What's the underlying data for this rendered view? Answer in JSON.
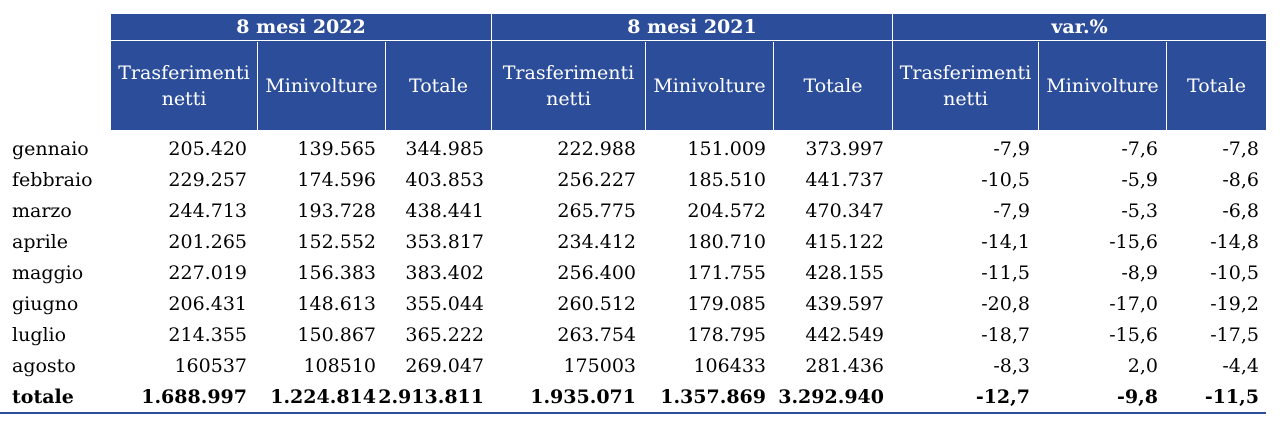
{
  "header": {
    "groups": [
      "8 mesi 2022",
      "8 mesi 2021",
      "var.%"
    ],
    "columns": [
      "Trasferimenti netti",
      "Minivolture",
      "Totale",
      "Trasferimenti netti",
      "Minivolture",
      "Totale",
      "Trasferimenti netti",
      "Minivolture",
      "Totale"
    ]
  },
  "rows": [
    {
      "month": "gennaio",
      "v": [
        "205.420",
        "139.565",
        "344.985",
        "222.988",
        "151.009",
        "373.997",
        "-7,9",
        "-7,6",
        "-7,8"
      ]
    },
    {
      "month": "febbraio",
      "v": [
        "229.257",
        "174.596",
        "403.853",
        "256.227",
        "185.510",
        "441.737",
        "-10,5",
        "-5,9",
        "-8,6"
      ]
    },
    {
      "month": "marzo",
      "v": [
        "244.713",
        "193.728",
        "438.441",
        "265.775",
        "204.572",
        "470.347",
        "-7,9",
        "-5,3",
        "-6,8"
      ]
    },
    {
      "month": "aprile",
      "v": [
        "201.265",
        "152.552",
        "353.817",
        "234.412",
        "180.710",
        "415.122",
        "-14,1",
        "-15,6",
        "-14,8"
      ]
    },
    {
      "month": "maggio",
      "v": [
        "227.019",
        "156.383",
        "383.402",
        "256.400",
        "171.755",
        "428.155",
        "-11,5",
        "-8,9",
        "-10,5"
      ]
    },
    {
      "month": "giugno",
      "v": [
        "206.431",
        "148.613",
        "355.044",
        "260.512",
        "179.085",
        "439.597",
        "-20,8",
        "-17,0",
        "-19,2"
      ]
    },
    {
      "month": "luglio",
      "v": [
        "214.355",
        "150.867",
        "365.222",
        "263.754",
        "178.795",
        "442.549",
        "-18,7",
        "-15,6",
        "-17,5"
      ]
    },
    {
      "month": "agosto",
      "v": [
        "160537",
        "108510",
        "269.047",
        "175003",
        "106433",
        "281.436",
        "-8,3",
        "2,0",
        "-4,4"
      ]
    }
  ],
  "total": {
    "month": "totale",
    "v": [
      "1.688.997",
      "1.224.814",
      "2.913.811",
      "1.935.071",
      "1.357.869",
      "3.292.940",
      "-12,7",
      "-9,8",
      "-11,5"
    ]
  },
  "colors": {
    "header_bg": "#2c4d9a",
    "header_text": "#ffffff"
  }
}
